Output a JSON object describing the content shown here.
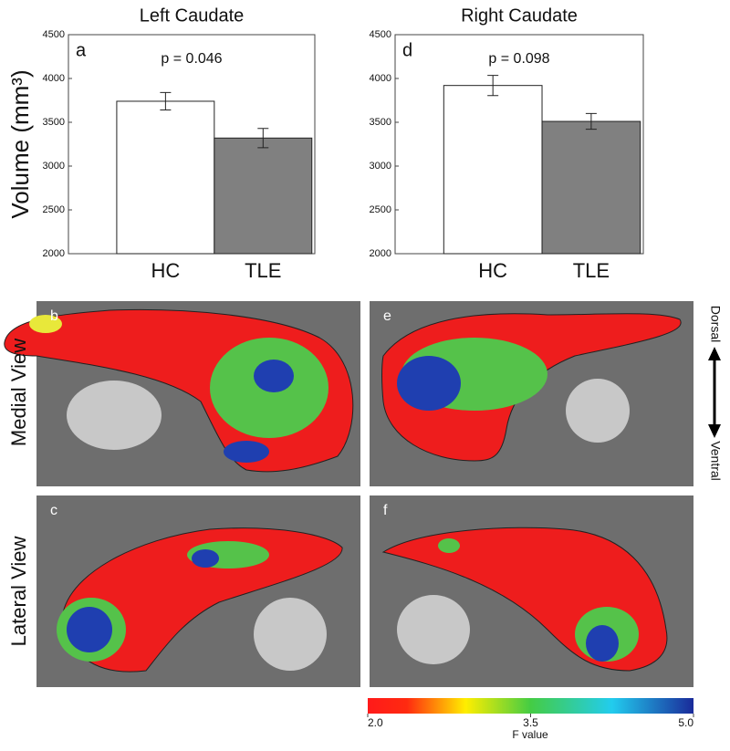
{
  "chart_data": [
    {
      "type": "bar",
      "title": "Left Caudate",
      "panel_label": "a",
      "annotation": "p = 0.046",
      "categories": [
        "HC",
        "TLE"
      ],
      "values": [
        3740,
        3320
      ],
      "errors": [
        100,
        110
      ],
      "colors": [
        "#ffffff",
        "#808080"
      ],
      "ylim": [
        2000,
        4500
      ],
      "yticks": [
        2000,
        2500,
        3000,
        3500,
        4000,
        4500
      ]
    },
    {
      "type": "bar",
      "title": "Right Caudate",
      "panel_label": "d",
      "annotation": "p = 0.098",
      "categories": [
        "HC",
        "TLE"
      ],
      "values": [
        3920,
        3510
      ],
      "errors": [
        115,
        90
      ],
      "colors": [
        "#ffffff",
        "#808080"
      ],
      "ylim": [
        2000,
        4500
      ],
      "yticks": [
        2000,
        2500,
        3000,
        3500,
        4000,
        4500
      ]
    }
  ],
  "y_axis_label": "Volume (mm³)",
  "panels": [
    "b",
    "c",
    "e",
    "f"
  ],
  "row_labels": [
    "Medial View",
    "Lateral View"
  ],
  "direction": {
    "top": "Dorsal",
    "bottom": "Ventral"
  },
  "colorbar": {
    "label": "F value",
    "lim": [
      2,
      5
    ],
    "ticks": [
      {
        "value": 2,
        "label": "2.0"
      },
      {
        "value": 3.5,
        "label": "3.5"
      },
      {
        "value": 5,
        "label": "5.0"
      }
    ]
  }
}
